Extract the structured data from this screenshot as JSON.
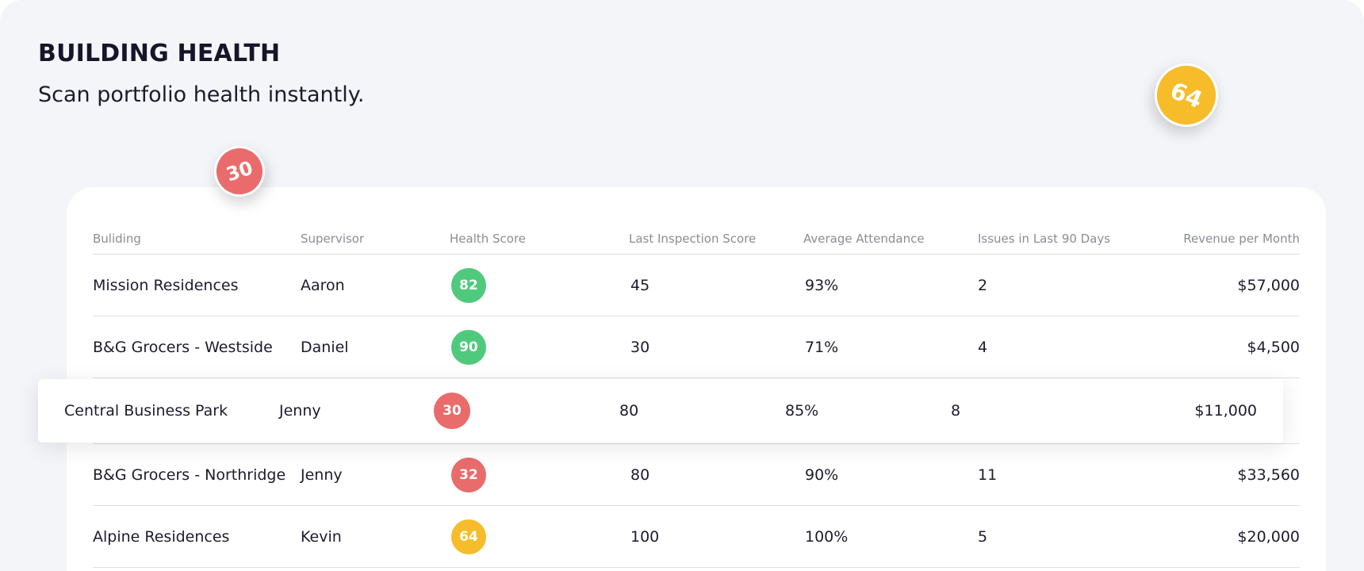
{
  "page": {
    "title": "BUILDING HEALTH",
    "subtitle": "Scan portfolio health instantly."
  },
  "floating_badges": [
    {
      "value": "30",
      "color": "#ea6b6b"
    },
    {
      "value": "64",
      "color": "#f6bc2a"
    }
  ],
  "colors": {
    "green": "#4fca7d",
    "red": "#ea6b6b",
    "yellow": "#f6bc2a"
  },
  "table": {
    "headers": [
      "Buliding",
      "Supervisor",
      "Health Score",
      "Last Inspection Score",
      "Average Attendance",
      "Issues in Last 90 Days",
      "Revenue per Month"
    ],
    "rows": [
      {
        "building": "Mission Residences",
        "supervisor": "Aaron",
        "health": "82",
        "health_color": "green",
        "inspection": "45",
        "attendance": "93%",
        "issues": "2",
        "revenue": "$57,000"
      },
      {
        "building": "B&G Grocers - Westside",
        "supervisor": "Daniel",
        "health": "90",
        "health_color": "green",
        "inspection": "30",
        "attendance": "71%",
        "issues": "4",
        "revenue": "$4,500"
      },
      {
        "building": "B&G Grocers - Northridge",
        "supervisor": "Jenny",
        "health": "32",
        "health_color": "red",
        "inspection": "80",
        "attendance": "90%",
        "issues": "11",
        "revenue": "$33,560"
      },
      {
        "building": "Alpine Residences",
        "supervisor": "Kevin",
        "health": "64",
        "health_color": "yellow",
        "inspection": "100",
        "attendance": "100%",
        "issues": "5",
        "revenue": "$20,000"
      }
    ],
    "lifted_row": {
      "building": "Central Business Park",
      "supervisor": "Jenny",
      "health": "30",
      "health_color": "red",
      "inspection": "80",
      "attendance": "85%",
      "issues": "8",
      "revenue": "$11,000"
    }
  }
}
